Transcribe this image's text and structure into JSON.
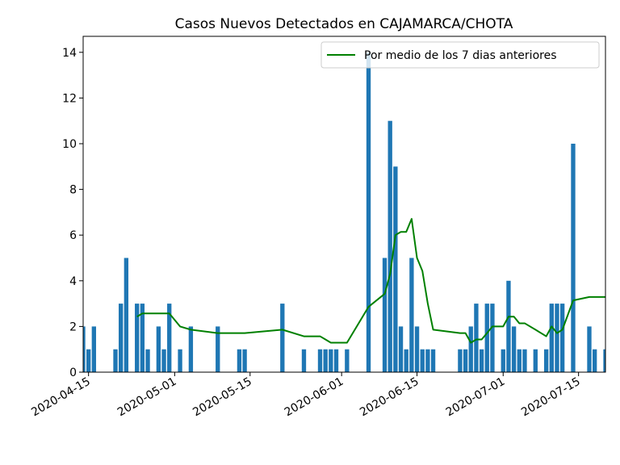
{
  "chart_data": {
    "type": "bar",
    "title": "Casos Nuevos Detectados en CAJAMARCA/CHOTA",
    "xlabel": "",
    "ylabel": "",
    "x_axis": "date",
    "xlim": [
      "2020-04-14",
      "2020-07-20"
    ],
    "ylim": [
      0,
      14.7
    ],
    "x_ticks": [
      "2020-04-15",
      "2020-05-01",
      "2020-05-15",
      "2020-06-01",
      "2020-06-15",
      "2020-07-01",
      "2020-07-15"
    ],
    "y_ticks": [
      0,
      2,
      4,
      6,
      8,
      10,
      12,
      14
    ],
    "grid": false,
    "legend_position": "top-right",
    "colors": {
      "bars": "#1f77b4",
      "line": "#008000"
    },
    "bars": {
      "x": [
        "2020-04-14",
        "2020-04-15",
        "2020-04-16",
        "2020-04-20",
        "2020-04-21",
        "2020-04-22",
        "2020-04-24",
        "2020-04-25",
        "2020-04-26",
        "2020-04-28",
        "2020-04-29",
        "2020-04-30",
        "2020-05-02",
        "2020-05-04",
        "2020-05-09",
        "2020-05-13",
        "2020-05-14",
        "2020-05-21",
        "2020-05-25",
        "2020-05-28",
        "2020-05-29",
        "2020-05-30",
        "2020-05-31",
        "2020-06-02",
        "2020-06-06",
        "2020-06-09",
        "2020-06-10",
        "2020-06-11",
        "2020-06-12",
        "2020-06-13",
        "2020-06-14",
        "2020-06-15",
        "2020-06-16",
        "2020-06-17",
        "2020-06-18",
        "2020-06-23",
        "2020-06-24",
        "2020-06-25",
        "2020-06-26",
        "2020-06-27",
        "2020-06-28",
        "2020-06-29",
        "2020-07-01",
        "2020-07-02",
        "2020-07-03",
        "2020-07-04",
        "2020-07-05",
        "2020-07-07",
        "2020-07-09",
        "2020-07-10",
        "2020-07-11",
        "2020-07-12",
        "2020-07-14",
        "2020-07-17",
        "2020-07-18",
        "2020-07-20"
      ],
      "values": [
        2,
        1,
        2,
        1,
        3,
        5,
        3,
        3,
        1,
        2,
        1,
        3,
        1,
        2,
        2,
        1,
        1,
        3,
        1,
        1,
        1,
        1,
        1,
        1,
        14,
        5,
        11,
        9,
        2,
        1,
        5,
        2,
        1,
        1,
        1,
        1,
        1,
        2,
        3,
        1,
        3,
        3,
        1,
        4,
        2,
        1,
        1,
        1,
        1,
        3,
        3,
        3,
        10,
        2,
        1,
        1
      ]
    },
    "series": [
      {
        "name": "Por medio de los 7 dias anteriores",
        "type": "line",
        "x": [
          "2020-04-24",
          "2020-04-25",
          "2020-04-29",
          "2020-04-30",
          "2020-05-02",
          "2020-05-04",
          "2020-05-09",
          "2020-05-13",
          "2020-05-14",
          "2020-05-21",
          "2020-05-25",
          "2020-05-28",
          "2020-05-29",
          "2020-05-30",
          "2020-05-31",
          "2020-06-02",
          "2020-06-06",
          "2020-06-09",
          "2020-06-10",
          "2020-06-11",
          "2020-06-12",
          "2020-06-13",
          "2020-06-14",
          "2020-06-15",
          "2020-06-16",
          "2020-06-17",
          "2020-06-18",
          "2020-06-23",
          "2020-06-24",
          "2020-06-25",
          "2020-06-26",
          "2020-06-27",
          "2020-06-28",
          "2020-06-29",
          "2020-07-01",
          "2020-07-02",
          "2020-07-03",
          "2020-07-04",
          "2020-07-05",
          "2020-07-07",
          "2020-07-09",
          "2020-07-10",
          "2020-07-11",
          "2020-07-12",
          "2020-07-14",
          "2020-07-17",
          "2020-07-18",
          "2020-07-20"
        ],
        "values": [
          2.43,
          2.57,
          2.57,
          2.57,
          2.0,
          1.86,
          1.71,
          1.71,
          1.71,
          1.86,
          1.57,
          1.57,
          1.43,
          1.29,
          1.29,
          1.29,
          2.86,
          3.43,
          4.29,
          6.0,
          6.14,
          6.14,
          6.71,
          5.0,
          4.43,
          3.0,
          1.86,
          1.71,
          1.71,
          1.29,
          1.43,
          1.43,
          1.71,
          2.0,
          2.0,
          2.43,
          2.43,
          2.14,
          2.14,
          1.86,
          1.57,
          2.0,
          1.71,
          1.86,
          3.14,
          3.29,
          3.29,
          3.29
        ]
      }
    ]
  }
}
